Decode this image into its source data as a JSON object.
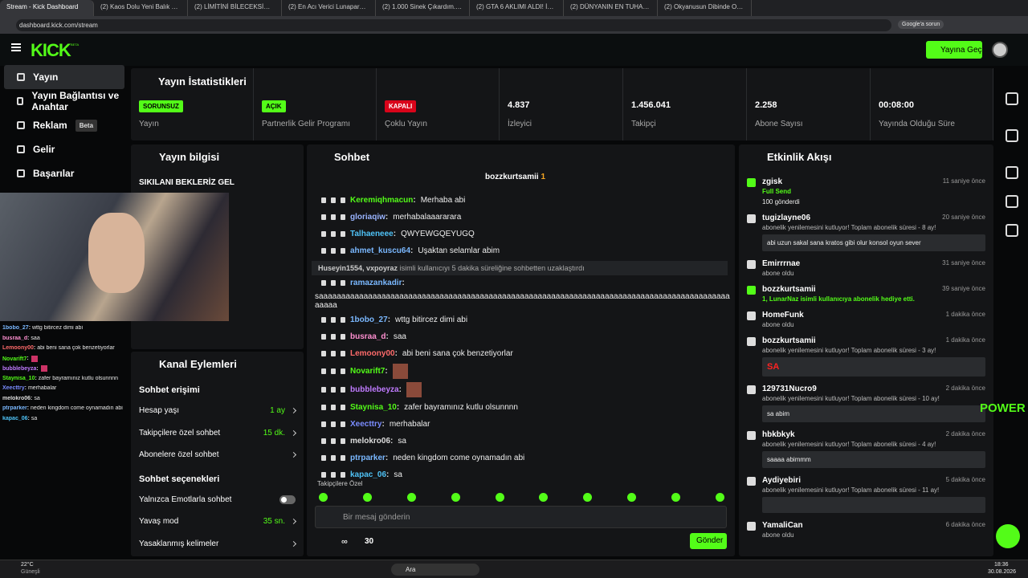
{
  "browser": {
    "tabs": [
      "Stream - Kick Dashboard",
      "(2) Kaos Dolu Yeni Balık Oyunu...",
      "(2) LİMİTİNİ BİLECEKSİN | 5Gris...",
      "(2) En Acı Verici Lunapark Ölüm...",
      "(2) 1.000 Sinek Çıkardım... Ve K...",
      "(2) GTA 6 AKLIMI ALDI! İLK OY...",
      "(2) DÜNYANIN EN TUHAF NÜK...",
      "(2) Okyanusun Dibinde Oksijen..."
    ],
    "url": "dashboard.kick.com/stream",
    "ask_google": "Google'a sorun"
  },
  "header": {
    "logo": "KICK",
    "beta": "BETA",
    "go_live": "Yayına Geç"
  },
  "nav": [
    {
      "label": "Yayın"
    },
    {
      "label": "Yayın Bağlantısı ve Anahtar"
    },
    {
      "label": "Reklam",
      "badge": "Beta"
    },
    {
      "label": "Gelir"
    },
    {
      "label": "Başarılar"
    }
  ],
  "stats": {
    "title": "Yayın İstatistikleri",
    "items": [
      {
        "badge": "SORUNSUZ",
        "label": "Yayın"
      },
      {
        "badge": "AÇIK",
        "label": "Partnerlik Gelir Programı"
      },
      {
        "badge": "KAPALI",
        "label": "Çoklu Yayın"
      },
      {
        "value": "4.837",
        "label": "İzleyici"
      },
      {
        "value": "1.456.041",
        "label": "Takipçi"
      },
      {
        "value": "2.258",
        "label": "Abone Sayısı"
      },
      {
        "value": "00:08:00",
        "label": "Yayında Olduğu Süre"
      }
    ]
  },
  "stream_info": {
    "title": "Yayın bilgisi",
    "stream_title": "SIKILANI BEKLERİZ GEL"
  },
  "overlay_chat": [
    {
      "user": "1bobo_27",
      "text": "wttg bitircez dimi abi",
      "color": "#7ab8ff"
    },
    {
      "user": "busraa_d",
      "text": "saa",
      "color": "#ff8fd0"
    },
    {
      "user": "Lemoony00",
      "text": "abi beni sana çok benzetiyorlar",
      "color": "#ff6b6b"
    },
    {
      "user": "Novarift7",
      "color": "#53fc18"
    },
    {
      "user": "bubblebeyza",
      "color": "#c07bff"
    },
    {
      "user": "Staynisa_10",
      "text": "zafer bayramınız kutlu olsunnnn",
      "color": "#53fc18"
    },
    {
      "user": "Xeecttry",
      "text": "merhabalar",
      "color": "#7a8cff"
    },
    {
      "user": "melokro06",
      "text": "sa",
      "color": "#dddddd"
    },
    {
      "user": "ptrparker",
      "text": "neden kingdom come oynamadın abi",
      "color": "#7ab8ff"
    },
    {
      "user": "kapac_06",
      "text": "sa",
      "color": "#4fc3f7"
    }
  ],
  "channel_actions": {
    "title": "Kanal Eylemleri",
    "sections": [
      {
        "heading": "Sohbet erişimi",
        "rows": [
          {
            "label": "Hesap yaşı",
            "value": "1 ay"
          },
          {
            "label": "Takipçilere özel sohbet",
            "value": "15 dk."
          },
          {
            "label": "Abonelere özel sohbet"
          }
        ]
      },
      {
        "heading": "Sohbet seçenekleri",
        "rows": [
          {
            "label": "Yalnızca Emotlarla sohbet"
          },
          {
            "label": "Yavaş mod",
            "value": "35 sn."
          },
          {
            "label": "Yasaklanmış kelimeler"
          }
        ]
      }
    ]
  },
  "chat": {
    "title": "Sohbet",
    "pinned": {
      "user": "bozzkurtsamii",
      "count": "1"
    },
    "messages": [
      {
        "user": "Keremiqhmacun",
        "text": "Merhaba abi",
        "color": "#53fc18"
      },
      {
        "user": "gloriaqiw",
        "text": "merhabalaaararara",
        "color": "#9ab4ff"
      },
      {
        "user": "Talhaeneee",
        "text": "QWYEWGQEYUGQ",
        "color": "#4fc3f7"
      },
      {
        "user": "ahmet_kuscu64",
        "text": "Uşaktan selamlar abim",
        "color": "#7ab8ff"
      },
      {
        "system": "Huseyin1554, vxpoyraz",
        "text": "isimli kullanıcıyı 5 dakika süreliğine sohbetten uzaklaştırdı"
      },
      {
        "user": "ramazankadir",
        "text": "saaaaaaaaaaaaaaaaaaaaaaaaaaaaaaaaaaaaaaaaaaaaaaaaaaaaaaaaaaaaaaaaaaaaaaaaaaaaaaaaaaaaaaaaaaaaaaaaa",
        "color": "#7ab8ff"
      },
      {
        "user": "1bobo_27",
        "text": "wttg bitircez dimi abi",
        "color": "#7ab8ff"
      },
      {
        "user": "busraa_d",
        "text": "saa",
        "color": "#ff8fd0"
      },
      {
        "user": "Lemoony00",
        "text": "abi beni sana çok benzetiyorlar",
        "color": "#ff6b6b"
      },
      {
        "user": "Novarift7",
        "color": "#53fc18"
      },
      {
        "user": "bubblebeyza",
        "color": "#c07bff"
      },
      {
        "user": "Staynisa_10",
        "text": "zafer bayramınız kutlu olsunnnn",
        "color": "#53fc18"
      },
      {
        "user": "Xeecttry",
        "text": "merhabalar",
        "color": "#7a8cff"
      },
      {
        "user": "melokro06",
        "text": "sa",
        "color": "#dddddd"
      },
      {
        "user": "ptrparker",
        "text": "neden kingdom come oynamadın abi",
        "color": "#7ab8ff"
      },
      {
        "user": "kapac_06",
        "text": "sa",
        "color": "#4fc3f7"
      }
    ],
    "followers_only": "Takipçilere Özel",
    "placeholder": "Bir mesaj gönderin",
    "footer_left": "∞",
    "points": "30",
    "send": "Gönder"
  },
  "activity": {
    "title": "Etkinlik Akışı",
    "items": [
      {
        "user": "zgisk",
        "line": "Full Send",
        "note": "100 gönderdi",
        "time": "11 saniye önce"
      },
      {
        "user": "tugizlayne06",
        "line": "abonelik yenilemesini kutluyor! Toplam abonelik süresi - 8 ay!",
        "note": "abi uzun sakal sana kratos gibi olur konsol oyun sever",
        "time": "20 saniye önce"
      },
      {
        "user": "Emirrrnae",
        "line": "abone oldu",
        "time": "31 saniye önce"
      },
      {
        "user": "bozzkurtsamii",
        "line": "1, LunarNaz isimli kullanıcıya abonelik hediye etti.",
        "time": "39 saniye önce"
      },
      {
        "user": "HomeFunk",
        "line": "abone oldu",
        "time": "1 dakika önce"
      },
      {
        "user": "bozzkurtsamii",
        "line": "abonelik yenilemesini kutluyor! Toplam abonelik süresi - 3 ay!",
        "note": "SA",
        "time": "1 dakika önce"
      },
      {
        "user": "129731Nucro9",
        "line": "abonelik yenilemesini kutluyor! Toplam abonelik süresi - 10 ay!",
        "note": "sa abim",
        "time": "2 dakika önce"
      },
      {
        "user": "hbkbkyk",
        "line": "abonelik yenilemesini kutluyor! Toplam abonelik süresi - 4 ay!",
        "note": "saaaa abimmm",
        "time": "2 dakika önce"
      },
      {
        "user": "Aydiyebiri",
        "line": "abonelik yenilemesini kutluyor! Toplam abonelik süresi - 11 ay!",
        "time": "5 dakika önce"
      },
      {
        "user": "YamaliCan",
        "line": "abone oldu",
        "time": "6 dakika önce"
      }
    ]
  },
  "watermark": "POWER",
  "taskbar": {
    "temp": "22°C",
    "weather": "Güneşli",
    "search": "Ara",
    "time": "18:36",
    "date": "30.08.2026"
  }
}
